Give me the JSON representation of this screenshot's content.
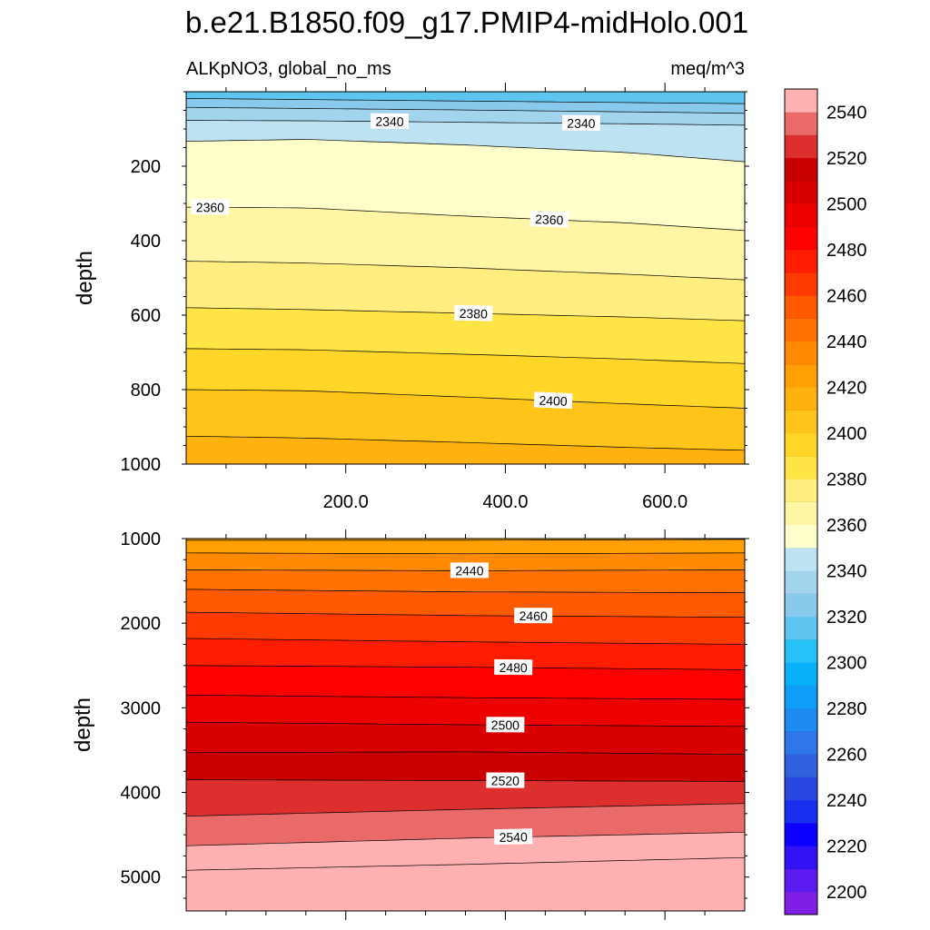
{
  "title": "b.e21.B1850.f09_g17.PMIP4-midHolo.001",
  "variable_label": "ALKpNO3, global_no_ms",
  "units_label": "meq/m^3",
  "colorbar": {
    "tick_labels": [
      "2200",
      "2220",
      "2240",
      "2260",
      "2280",
      "2300",
      "2320",
      "2340",
      "2360",
      "2380",
      "2400",
      "2420",
      "2440",
      "2460",
      "2480",
      "2500",
      "2520",
      "2540"
    ],
    "level_colors": [
      "#7f1fe5",
      "#5b1af0",
      "#3311f5",
      "#0b00ff",
      "#1a2ef0",
      "#2b47e2",
      "#3160de",
      "#2f76e8",
      "#1e8bf2",
      "#0e9ef9",
      "#08b0fb",
      "#25c1f7",
      "#5ec5f0",
      "#88c9ec",
      "#a3d4ee",
      "#bde2f1",
      "#ffffcc",
      "#fff5a5",
      "#ffed80",
      "#ffe445",
      "#ffd527",
      "#ffc419",
      "#ffb20d",
      "#ff9f03",
      "#ff8900",
      "#ff7200",
      "#ff5a00",
      "#ff3a00",
      "#ff1c00",
      "#ff0000",
      "#ec0000",
      "#d80000",
      "#c80000",
      "#de2f2f",
      "#ea6a6a",
      "#ffb0b0"
    ]
  },
  "chart_data": [
    {
      "type": "contour",
      "panel": "upper",
      "x_axis": {
        "label": "",
        "range": [
          0,
          700
        ],
        "tick_labels": [
          "200.0",
          "400.0",
          "600.0"
        ],
        "ticks": [
          200,
          400,
          600
        ]
      },
      "y_axis": {
        "label": "depth",
        "range": [
          0,
          1000
        ],
        "inverted": true,
        "tick_labels": [
          "200",
          "400",
          "600",
          "800",
          "1000"
        ],
        "ticks": [
          200,
          400,
          600,
          800,
          1000
        ]
      },
      "contour_lines": [
        {
          "x": [
            0,
            150,
            350,
            550,
            700
          ],
          "depth": [
            18,
            21,
            25,
            29,
            32
          ],
          "level": 2320
        },
        {
          "x": [
            0,
            150,
            350,
            550,
            700
          ],
          "depth": [
            42,
            45,
            49,
            54,
            58
          ],
          "level": 2330
        },
        {
          "x": [
            0,
            150,
            350,
            550,
            700
          ],
          "depth": [
            77,
            78,
            82,
            86,
            90
          ],
          "level": 2340,
          "label_x": [
            255,
            495
          ]
        },
        {
          "x": [
            0,
            150,
            350,
            550,
            700
          ],
          "depth": [
            133,
            128,
            143,
            163,
            188
          ],
          "level": 2350
        },
        {
          "x": [
            0,
            150,
            350,
            550,
            700
          ],
          "depth": [
            310,
            312,
            334,
            352,
            373
          ],
          "level": 2360,
          "label_x": [
            30,
            455
          ]
        },
        {
          "x": [
            0,
            150,
            350,
            550,
            700
          ],
          "depth": [
            455,
            460,
            473,
            490,
            505
          ],
          "level": 2370
        },
        {
          "x": [
            0,
            150,
            350,
            550,
            700
          ],
          "depth": [
            580,
            585,
            595,
            605,
            615
          ],
          "level": 2380,
          "label_x": [
            360
          ]
        },
        {
          "x": [
            0,
            150,
            350,
            550,
            700
          ],
          "depth": [
            690,
            693,
            705,
            718,
            730
          ],
          "level": 2390
        },
        {
          "x": [
            0,
            150,
            350,
            550,
            700
          ],
          "depth": [
            800,
            803,
            820,
            838,
            850
          ],
          "level": 2400,
          "label_x": [
            460
          ]
        },
        {
          "x": [
            0,
            150,
            350,
            550,
            700
          ],
          "depth": [
            925,
            930,
            942,
            955,
            963
          ],
          "level": 2410
        }
      ]
    },
    {
      "type": "contour",
      "panel": "lower",
      "x_axis": {
        "label": "",
        "range": [
          0,
          700
        ]
      },
      "y_axis": {
        "label": "depth",
        "range": [
          1000,
          5400
        ],
        "inverted": true,
        "tick_labels": [
          "1000",
          "2000",
          "3000",
          "4000",
          "5000"
        ],
        "ticks": [
          1000,
          2000,
          3000,
          4000,
          5000
        ]
      },
      "contour_lines": [
        {
          "x": [
            0,
            350,
            700
          ],
          "depth": [
            1020,
            1020,
            1010
          ],
          "level": 2420
        },
        {
          "x": [
            0,
            350,
            700
          ],
          "depth": [
            1170,
            1180,
            1170
          ],
          "level": 2430
        },
        {
          "x": [
            0,
            350,
            700
          ],
          "depth": [
            1370,
            1380,
            1370
          ],
          "level": 2440,
          "label_x": [
            355
          ]
        },
        {
          "x": [
            0,
            350,
            700
          ],
          "depth": [
            1600,
            1630,
            1640
          ],
          "level": 2450
        },
        {
          "x": [
            0,
            350,
            700
          ],
          "depth": [
            1870,
            1910,
            1930
          ],
          "level": 2460,
          "label_x": [
            435
          ]
        },
        {
          "x": [
            0,
            350,
            700
          ],
          "depth": [
            2180,
            2220,
            2250
          ],
          "level": 2470
        },
        {
          "x": [
            0,
            350,
            700
          ],
          "depth": [
            2500,
            2520,
            2550
          ],
          "level": 2480,
          "label_x": [
            410
          ]
        },
        {
          "x": [
            0,
            350,
            700
          ],
          "depth": [
            2850,
            2880,
            2900
          ],
          "level": 2490
        },
        {
          "x": [
            0,
            350,
            700
          ],
          "depth": [
            3170,
            3200,
            3220
          ],
          "level": 2500,
          "label_x": [
            400
          ]
        },
        {
          "x": [
            0,
            350,
            700
          ],
          "depth": [
            3530,
            3520,
            3550
          ],
          "level": 2510
        },
        {
          "x": [
            0,
            350,
            700
          ],
          "depth": [
            3850,
            3860,
            3870
          ],
          "level": 2520,
          "label_x": [
            400
          ]
        },
        {
          "x": [
            0,
            350,
            700
          ],
          "depth": [
            4280,
            4200,
            4130
          ],
          "level": 2530
        },
        {
          "x": [
            0,
            350,
            700
          ],
          "depth": [
            4630,
            4540,
            4470
          ],
          "level": 2540,
          "label_x": [
            410
          ]
        },
        {
          "x": [
            0,
            350,
            700
          ],
          "depth": [
            4920,
            4850,
            4770
          ],
          "level": 2550
        }
      ]
    }
  ]
}
